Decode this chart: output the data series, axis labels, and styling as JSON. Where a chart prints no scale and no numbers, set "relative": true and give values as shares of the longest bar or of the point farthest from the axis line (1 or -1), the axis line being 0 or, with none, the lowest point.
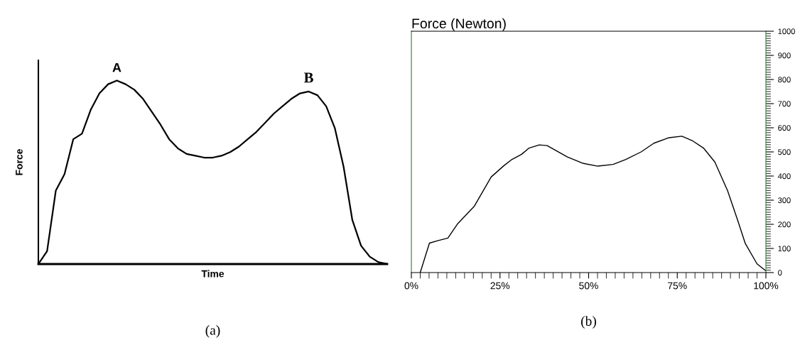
{
  "chart_data": [
    {
      "type": "line",
      "relative": true,
      "xlabel": "Time",
      "ylabel": "Force",
      "color": "#000000",
      "categories": [
        null,
        null,
        null,
        null,
        null,
        null,
        null,
        null,
        null,
        null,
        null,
        null,
        null,
        null,
        null,
        null,
        null,
        null,
        null,
        null,
        null,
        null,
        null,
        null,
        null,
        null,
        null,
        null,
        null,
        null,
        null,
        null,
        null,
        null,
        null,
        null,
        null,
        null,
        null,
        null,
        null
      ],
      "values": [
        0,
        0.07,
        0.4,
        0.49,
        0.68,
        0.71,
        0.84,
        0.93,
        0.98,
        1.0,
        0.98,
        0.95,
        0.9,
        0.83,
        0.76,
        0.68,
        0.63,
        0.6,
        0.59,
        0.58,
        0.58,
        0.59,
        0.61,
        0.64,
        0.68,
        0.72,
        0.77,
        0.82,
        0.86,
        0.9,
        0.93,
        0.94,
        0.92,
        0.86,
        0.74,
        0.53,
        0.24,
        0.1,
        0.04,
        0.01,
        0
      ],
      "annotations": [
        {
          "text": "A",
          "y": 1.0
        },
        {
          "text": "B",
          "y": 0.94
        },
        "(a)"
      ],
      "grid": false
    },
    {
      "type": "line",
      "title": "Force (Newton)",
      "color": "#000000",
      "x": [
        2.5,
        5.1,
        7.4,
        10.3,
        13.1,
        17.8,
        22.5,
        26.1,
        28.2,
        31.1,
        33.2,
        36.1,
        38.3,
        44,
        48.3,
        52.6,
        56.9,
        60.5,
        64.8,
        68.4,
        72.7,
        76.3,
        79.2,
        82.4,
        85.6,
        89.2,
        92.1,
        94.2,
        97.5,
        100
      ],
      "values": [
        0,
        122,
        132,
        143,
        203,
        276,
        396,
        443,
        467,
        490,
        516,
        529,
        526,
        479,
        453,
        441,
        448,
        469,
        500,
        536,
        559,
        565,
        547,
        516,
        458,
        339,
        214,
        120,
        36,
        7
      ],
      "xlim": [
        0,
        100
      ],
      "xticks": [
        {
          "value": 0,
          "label": "0%"
        },
        {
          "value": 25,
          "label": "25%"
        },
        {
          "value": 50,
          "label": "50%"
        },
        {
          "value": 75,
          "label": "75%"
        },
        {
          "value": 100,
          "label": "100%"
        }
      ],
      "ylim": [
        0,
        1000
      ],
      "yticks": [
        0,
        100,
        200,
        300,
        400,
        500,
        600,
        700,
        800,
        900,
        1000
      ],
      "annotations": [
        "(b)"
      ],
      "grid": false
    }
  ]
}
